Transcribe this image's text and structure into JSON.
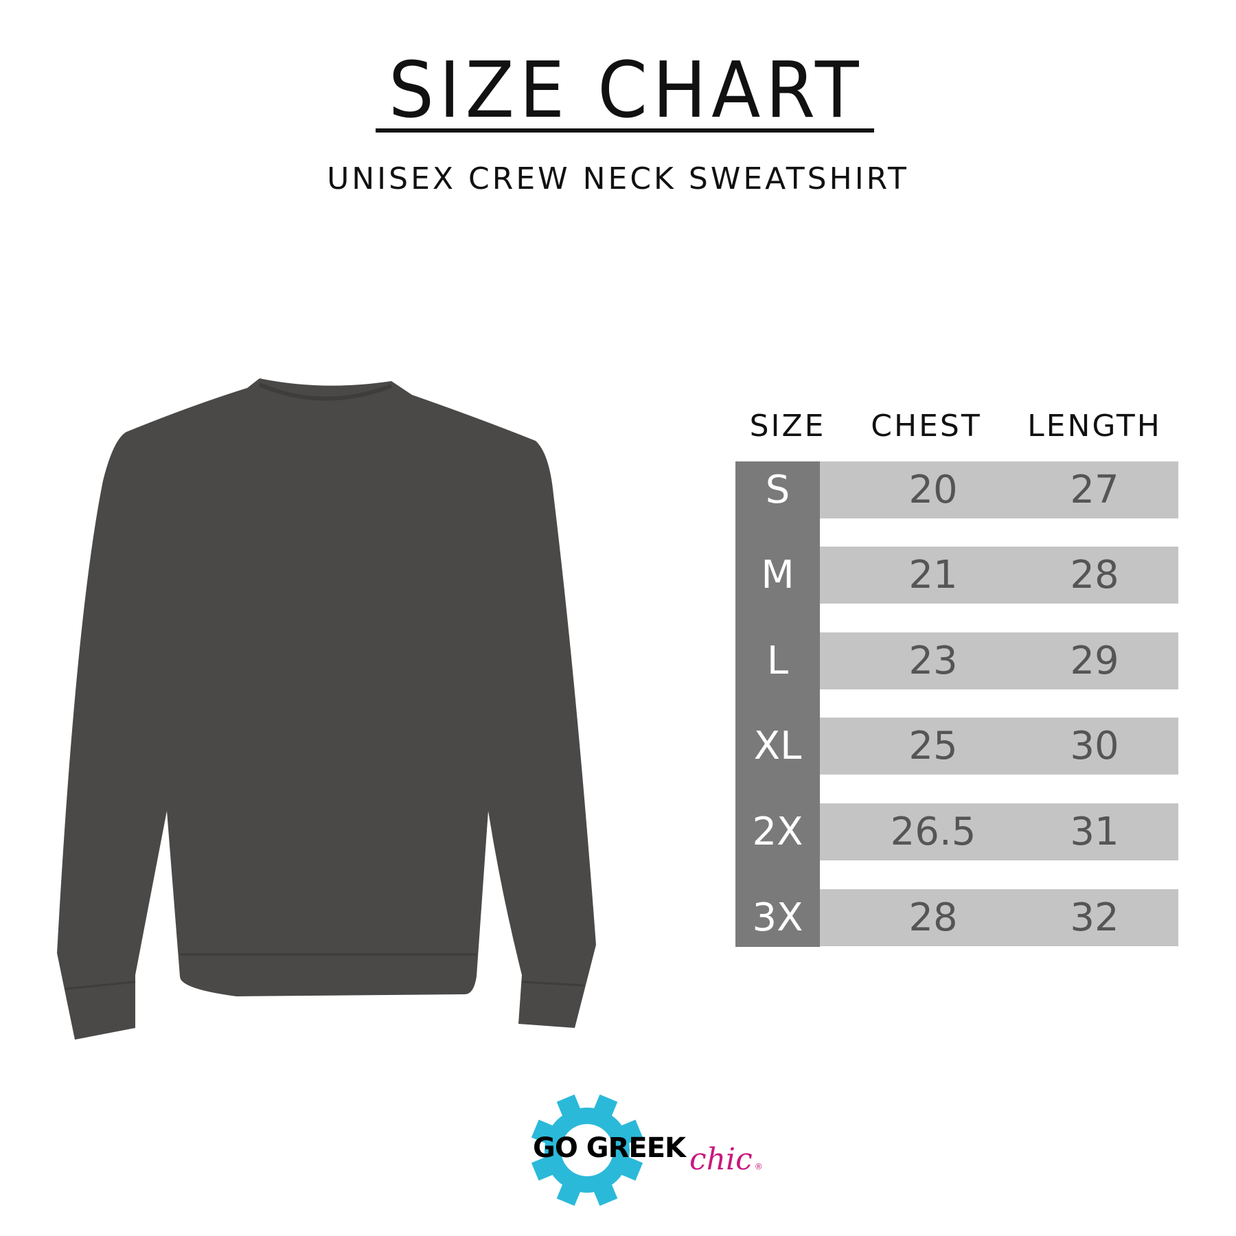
{
  "title": "SIZE CHART",
  "subtitle": "UNISEX CREW NECK SWEATSHIRT",
  "table": {
    "headers": [
      "SIZE",
      "CHEST",
      "LENGTH"
    ],
    "rows": [
      {
        "size": "S",
        "chest": "20",
        "length": "27"
      },
      {
        "size": "M",
        "chest": "21",
        "length": "28"
      },
      {
        "size": "L",
        "chest": "23",
        "length": "29"
      },
      {
        "size": "XL",
        "chest": "25",
        "length": "30"
      },
      {
        "size": "2X",
        "chest": "26.5",
        "length": "31"
      },
      {
        "size": "3X",
        "chest": "28",
        "length": "32"
      }
    ]
  },
  "colors": {
    "size_column": "#7a7a7a",
    "row_band": "#c4c4c4",
    "garment": "#4a4947",
    "logo_gear": "#2bb9d9",
    "logo_chic": "#c8197f"
  },
  "logo": {
    "text": "GO GREEK",
    "script": "chic",
    "mark": "®"
  },
  "image": {
    "subject": "sweatshirt-photo"
  }
}
